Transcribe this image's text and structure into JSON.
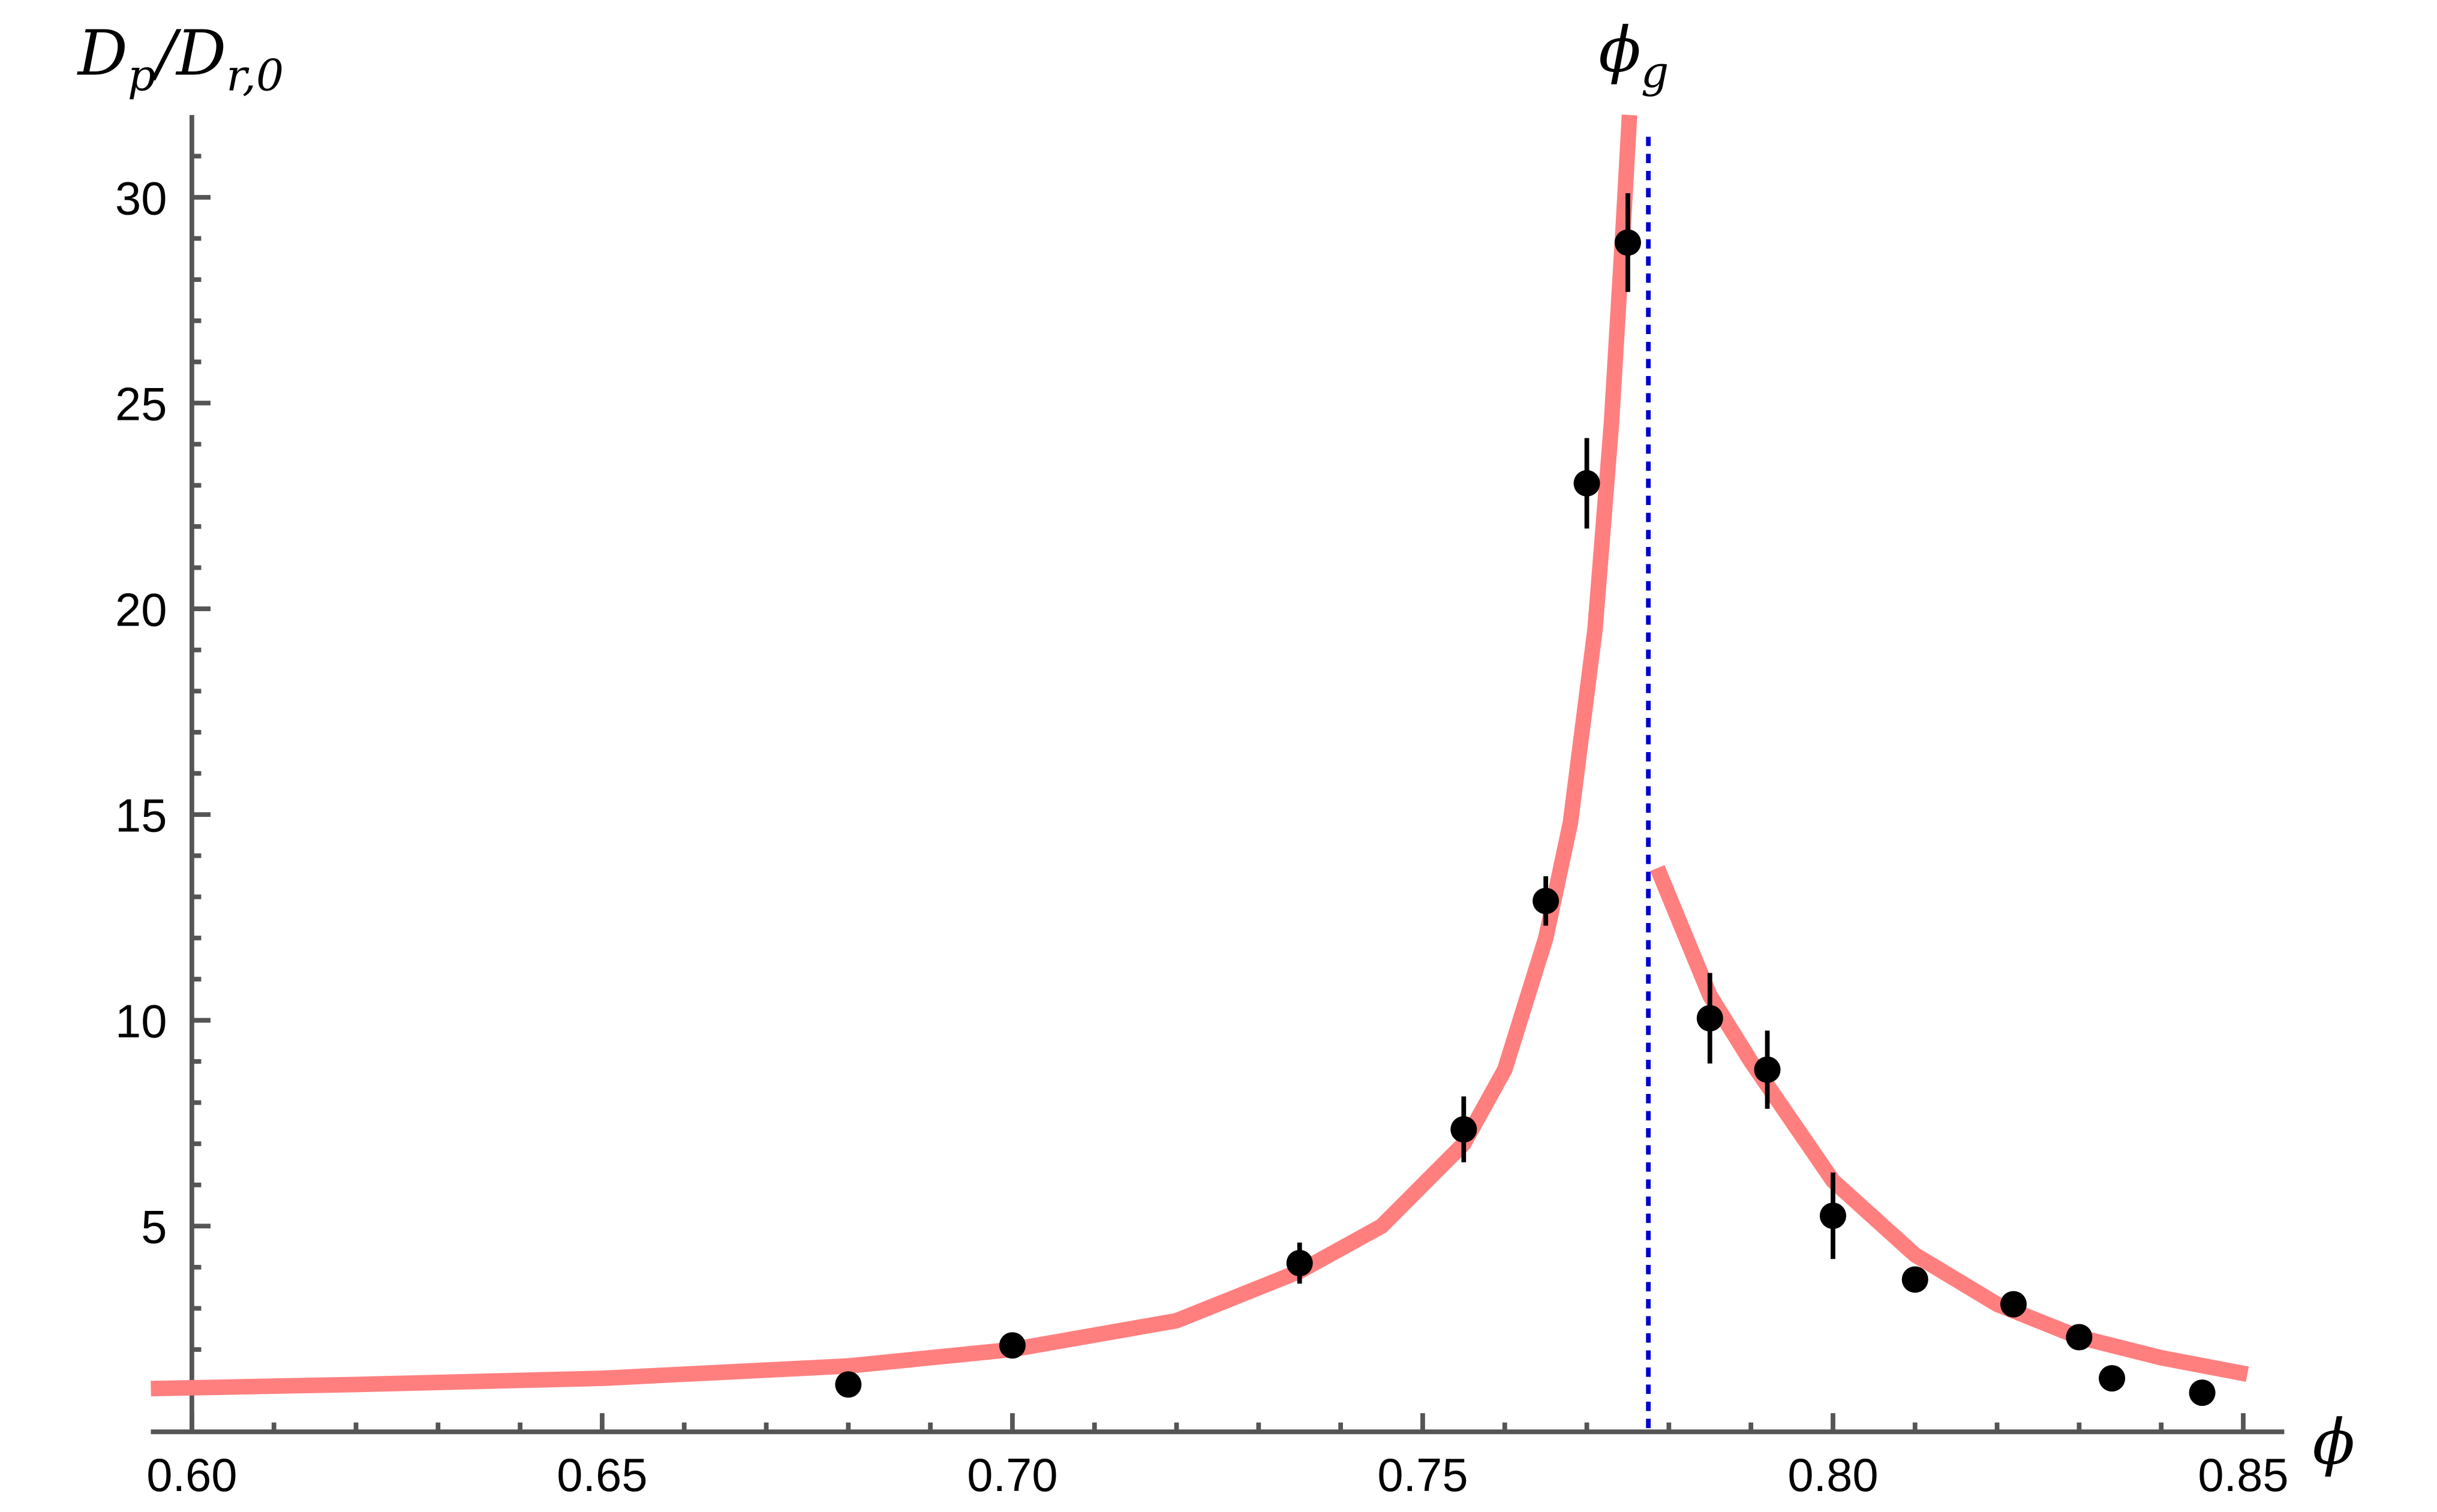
{
  "chart_data": {
    "type": "scatter",
    "ylabel": [
      {
        "t": "D"
      },
      {
        "t": "p",
        "sub": true
      },
      {
        "t": "/D"
      },
      {
        "t": "r,0",
        "sub": true
      }
    ],
    "xlabel": [
      {
        "t": "ϕ"
      }
    ],
    "x": [
      0.68,
      0.7,
      0.735,
      0.755,
      0.765,
      0.77,
      0.775,
      0.785,
      0.792,
      0.8,
      0.81,
      0.822,
      0.83,
      0.834,
      0.845
    ],
    "values": [
      1.15,
      2.1,
      4.1,
      7.35,
      12.9,
      23.05,
      28.9,
      10.05,
      8.8,
      5.25,
      3.7,
      3.1,
      2.3,
      1.3,
      0.95
    ],
    "errors": [
      0.1,
      0.3,
      0.5,
      0.8,
      0.6,
      1.1,
      1.2,
      1.1,
      0.95,
      1.05,
      0.1,
      0.15,
      0.2,
      0.1,
      0.1
    ],
    "color": "#000000",
    "curves": [
      {
        "color": "#ff7f7f",
        "x": [
          0.595,
          0.62,
          0.65,
          0.68,
          0.7,
          0.72,
          0.735,
          0.745,
          0.755,
          0.76,
          0.765,
          0.768,
          0.771,
          0.773,
          0.7745,
          0.7752
        ],
        "values": [
          1.05,
          1.15,
          1.3,
          1.6,
          2.0,
          2.7,
          3.9,
          5.0,
          7.0,
          8.8,
          12.0,
          14.8,
          19.5,
          24.5,
          29.5,
          32
        ]
      },
      {
        "color": "#ff7f7f",
        "x": [
          0.7786,
          0.785,
          0.79,
          0.8,
          0.81,
          0.82,
          0.83,
          0.84,
          0.8505
        ],
        "values": [
          13.7,
          10.6,
          9.0,
          6.1,
          4.3,
          3.1,
          2.3,
          1.8,
          1.4
        ]
      }
    ],
    "vline": {
      "x": 0.7775,
      "color": "#0000cc",
      "label": [
        {
          "t": "ϕ"
        },
        {
          "t": "g",
          "sub": true
        }
      ]
    },
    "xlim": [
      0.595,
      0.855
    ],
    "ylim": [
      0,
      32
    ],
    "xticks": [
      {
        "value": 0.6,
        "label": "0.60"
      },
      {
        "value": 0.65,
        "label": "0.65"
      },
      {
        "value": 0.7,
        "label": "0.70"
      },
      {
        "value": 0.75,
        "label": "0.75"
      },
      {
        "value": 0.8,
        "label": "0.80"
      },
      {
        "value": 0.85,
        "label": "0.85"
      }
    ],
    "yticks": [
      5,
      10,
      15,
      20,
      25,
      30
    ],
    "xminorticks": [
      0.61,
      0.62,
      0.63,
      0.64,
      0.66,
      0.67,
      0.68,
      0.69,
      0.71,
      0.72,
      0.73,
      0.74,
      0.76,
      0.77,
      0.78,
      0.79,
      0.81,
      0.82,
      0.83,
      0.84
    ],
    "yminorticks": [
      1,
      2,
      3,
      4,
      6,
      7,
      8,
      9,
      11,
      12,
      13,
      14,
      16,
      17,
      18,
      19,
      21,
      22,
      23,
      24,
      26,
      27,
      28,
      29,
      31
    ]
  }
}
